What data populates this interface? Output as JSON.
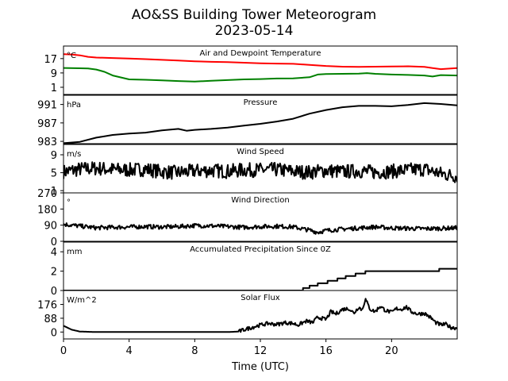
{
  "chart_data": {
    "title": "AO&SS Building Tower Meteorogram",
    "subtitle": "2023-05-14",
    "xlabel": "Time (UTC)",
    "xlim": [
      0,
      24
    ],
    "x_ticks": [
      0,
      4,
      8,
      12,
      16,
      20
    ],
    "panels": [
      {
        "type": "line",
        "title": "Air and Dewpoint Temperature",
        "unit": "°C",
        "ylim": [
          -3,
          24
        ],
        "yticks": [
          1,
          9,
          17
        ],
        "series": [
          {
            "color": "#ff0000",
            "points": [
              [
                0,
                19.5
              ],
              [
                0.5,
                19.3
              ],
              [
                1,
                18.8
              ],
              [
                1.5,
                18.0
              ],
              [
                2,
                17.6
              ],
              [
                3,
                17.3
              ],
              [
                4,
                17.0
              ],
              [
                5,
                16.7
              ],
              [
                6,
                16.3
              ],
              [
                7,
                15.9
              ],
              [
                8,
                15.5
              ],
              [
                9,
                15.2
              ],
              [
                10,
                15.0
              ],
              [
                11,
                14.7
              ],
              [
                12,
                14.4
              ],
              [
                13,
                14.2
              ],
              [
                14,
                14.1
              ],
              [
                15,
                13.5
              ],
              [
                16,
                12.9
              ],
              [
                17,
                12.5
              ],
              [
                18,
                12.4
              ],
              [
                19,
                12.5
              ],
              [
                20,
                12.6
              ],
              [
                21,
                12.7
              ],
              [
                22,
                12.4
              ],
              [
                22.5,
                11.7
              ],
              [
                23,
                11.1
              ],
              [
                24,
                11.7
              ]
            ]
          },
          {
            "color": "#008000",
            "points": [
              [
                0,
                11.8
              ],
              [
                1,
                11.6
              ],
              [
                1.5,
                11.5
              ],
              [
                2,
                10.9
              ],
              [
                2.5,
                9.6
              ],
              [
                3,
                7.6
              ],
              [
                4,
                5.4
              ],
              [
                5,
                5.2
              ],
              [
                6,
                4.9
              ],
              [
                7,
                4.5
              ],
              [
                8,
                4.2
              ],
              [
                9,
                4.6
              ],
              [
                10,
                5.0
              ],
              [
                11,
                5.4
              ],
              [
                12,
                5.6
              ],
              [
                13,
                5.9
              ],
              [
                14,
                6.0
              ],
              [
                15,
                6.6
              ],
              [
                15.5,
                8.1
              ],
              [
                16,
                8.4
              ],
              [
                17,
                8.5
              ],
              [
                18,
                8.6
              ],
              [
                18.5,
                8.9
              ],
              [
                19,
                8.5
              ],
              [
                20,
                8.1
              ],
              [
                21,
                7.9
              ],
              [
                22,
                7.6
              ],
              [
                22.5,
                7.0
              ],
              [
                23,
                7.8
              ],
              [
                24,
                7.6
              ]
            ]
          }
        ]
      },
      {
        "type": "line",
        "title": "Pressure",
        "unit": "hPa",
        "ylim": [
          982.5,
          993.0
        ],
        "yticks": [
          983,
          987,
          991
        ],
        "series": [
          {
            "color": "#000000",
            "points": [
              [
                0,
                982.6
              ],
              [
                1,
                982.9
              ],
              [
                2,
                983.8
              ],
              [
                3,
                984.4
              ],
              [
                4,
                984.7
              ],
              [
                5,
                984.9
              ],
              [
                6,
                985.4
              ],
              [
                7,
                985.7
              ],
              [
                7.5,
                985.3
              ],
              [
                8,
                985.5
              ],
              [
                9,
                985.7
              ],
              [
                10,
                986.0
              ],
              [
                11,
                986.4
              ],
              [
                12,
                986.8
              ],
              [
                13,
                987.3
              ],
              [
                14,
                987.9
              ],
              [
                15,
                989.0
              ],
              [
                16,
                989.8
              ],
              [
                17,
                990.4
              ],
              [
                18,
                990.7
              ],
              [
                19,
                990.7
              ],
              [
                20,
                990.6
              ],
              [
                21,
                990.9
              ],
              [
                22,
                991.3
              ],
              [
                23,
                991.1
              ],
              [
                24,
                990.8
              ]
            ]
          }
        ]
      },
      {
        "type": "line",
        "title": "Wind Speed",
        "unit": "m/s",
        "ylim": [
          0.5,
          11.3
        ],
        "yticks": [
          1,
          5,
          9
        ],
        "series": [
          {
            "color": "#000000",
            "points": [
              [
                0,
                5.2
              ],
              [
                1,
                5.8
              ],
              [
                2,
                6.0
              ],
              [
                3,
                5.7
              ],
              [
                4,
                5.6
              ],
              [
                5,
                5.8
              ],
              [
                6,
                5.2
              ],
              [
                7,
                5.0
              ],
              [
                8,
                5.4
              ],
              [
                9,
                5.5
              ],
              [
                10,
                5.3
              ],
              [
                11,
                5.6
              ],
              [
                12,
                5.6
              ],
              [
                13,
                5.7
              ],
              [
                14,
                5.3
              ],
              [
                15,
                5.1
              ],
              [
                16,
                5.5
              ],
              [
                17,
                5.2
              ],
              [
                18,
                5.4
              ],
              [
                19,
                5.1
              ],
              [
                20,
                5.3
              ],
              [
                21,
                5.6
              ],
              [
                22,
                5.8
              ],
              [
                23,
                4.8
              ],
              [
                24,
                4.2
              ]
            ],
            "noise": 1.6
          }
        ]
      },
      {
        "type": "line",
        "title": "Wind Direction",
        "unit": "°",
        "ylim": [
          0,
          270
        ],
        "yticks": [
          0,
          90,
          180,
          270
        ],
        "series": [
          {
            "color": "#000000",
            "points": [
              [
                0,
                95
              ],
              [
                1,
                85
              ],
              [
                2,
                75
              ],
              [
                3,
                78
              ],
              [
                4,
                80
              ],
              [
                5,
                82
              ],
              [
                6,
                80
              ],
              [
                7,
                82
              ],
              [
                8,
                88
              ],
              [
                9,
                86
              ],
              [
                10,
                82
              ],
              [
                11,
                78
              ],
              [
                12,
                82
              ],
              [
                13,
                84
              ],
              [
                14,
                80
              ],
              [
                15,
                62
              ],
              [
                15.5,
                50
              ],
              [
                16,
                60
              ],
              [
                17,
                68
              ],
              [
                18,
                74
              ],
              [
                19,
                80
              ],
              [
                20,
                74
              ],
              [
                21,
                72
              ],
              [
                22,
                70
              ],
              [
                23,
                72
              ],
              [
                24,
                75
              ]
            ],
            "noise": 12
          }
        ]
      },
      {
        "type": "step",
        "title": "Accumulated Precipitation Since 0Z",
        "unit": "mm",
        "ylim": [
          0,
          5
        ],
        "yticks": [
          0,
          2,
          4
        ],
        "series": [
          {
            "color": "#000000",
            "points": [
              [
                0,
                0
              ],
              [
                14.6,
                0
              ],
              [
                14.6,
                0.25
              ],
              [
                15.0,
                0.25
              ],
              [
                15.0,
                0.5
              ],
              [
                15.5,
                0.5
              ],
              [
                15.5,
                0.75
              ],
              [
                16.1,
                0.75
              ],
              [
                16.1,
                1.0
              ],
              [
                16.7,
                1.0
              ],
              [
                16.7,
                1.25
              ],
              [
                17.2,
                1.25
              ],
              [
                17.2,
                1.5
              ],
              [
                17.8,
                1.5
              ],
              [
                17.8,
                1.75
              ],
              [
                18.4,
                1.75
              ],
              [
                18.4,
                2.0
              ],
              [
                22.9,
                2.0
              ],
              [
                22.9,
                2.25
              ],
              [
                24,
                2.25
              ]
            ]
          }
        ]
      },
      {
        "type": "line",
        "title": "Solar Flux",
        "unit": "W/m^2",
        "ylim": [
          -44,
          265
        ],
        "yticks": [
          0,
          88,
          176
        ],
        "series": [
          {
            "color": "#000000",
            "points": [
              [
                0,
                40
              ],
              [
                0.5,
                15
              ],
              [
                1,
                3
              ],
              [
                2,
                0
              ],
              [
                3,
                0
              ],
              [
                4,
                0
              ],
              [
                5,
                0
              ],
              [
                6,
                0
              ],
              [
                7,
                0
              ],
              [
                8,
                0
              ],
              [
                9,
                0
              ],
              [
                10,
                0
              ],
              [
                10.7,
                3
              ],
              [
                11,
                15
              ],
              [
                11.5,
                30
              ],
              [
                12,
                45
              ],
              [
                12.5,
                55
              ],
              [
                13,
                48
              ],
              [
                13.5,
                60
              ],
              [
                14,
                55
              ],
              [
                14.3,
                45
              ],
              [
                14.8,
                70
              ],
              [
                15.2,
                60
              ],
              [
                15.5,
                95
              ],
              [
                16,
                80
              ],
              [
                16.3,
                130
              ],
              [
                16.6,
                115
              ],
              [
                17,
                145
              ],
              [
                17.4,
                150
              ],
              [
                17.7,
                120
              ],
              [
                18,
                160
              ],
              [
                18.2,
                140
              ],
              [
                18.4,
                210
              ],
              [
                18.7,
                145
              ],
              [
                19,
                130
              ],
              [
                19.3,
                165
              ],
              [
                19.6,
                140
              ],
              [
                20,
                125
              ],
              [
                20.3,
                150
              ],
              [
                20.6,
                145
              ],
              [
                20.9,
                160
              ],
              [
                21.2,
                130
              ],
              [
                21.6,
                115
              ],
              [
                22,
                120
              ],
              [
                22.4,
                90
              ],
              [
                22.7,
                60
              ],
              [
                23,
                45
              ],
              [
                23.3,
                50
              ],
              [
                23.6,
                30
              ],
              [
                24,
                25
              ]
            ],
            "noise": 12
          }
        ]
      }
    ]
  }
}
